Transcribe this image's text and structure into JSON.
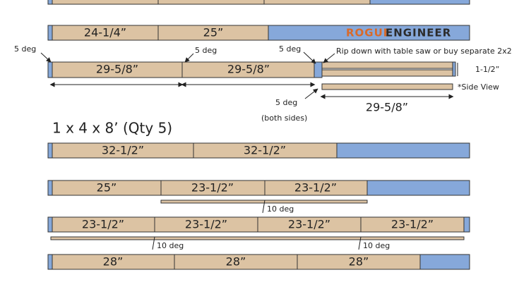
{
  "logo": {
    "rogue": "ROGUE",
    "engineer": "ENGINEER"
  },
  "section_2x4": {
    "row1": {
      "cuts": [
        "24-1/4”",
        "25”"
      ]
    },
    "row2": {
      "cuts": [
        "29-5/8”",
        "29-5/8”"
      ]
    },
    "notes": {
      "angle_left": "5 deg",
      "angle_mid": "5 deg",
      "angle_right": "5 deg",
      "rip": "Rip down with table saw or buy separate 2x2",
      "width": "1-1/2”",
      "side_view": "*Side View",
      "side_angle": "5 deg",
      "both_sides": "(both sides)",
      "side_length": "29-5/8”"
    }
  },
  "section_1x4": {
    "heading": "1 x 4 x 8’ (Qty 5)",
    "row1": {
      "cuts": [
        "32-1/2”",
        "32-1/2”"
      ]
    },
    "row2": {
      "cuts": [
        "25”",
        "23-1/2”",
        "23-1/2”"
      ],
      "angle": "10 deg"
    },
    "row3": {
      "cuts": [
        "23-1/2”",
        "23-1/2”",
        "23-1/2”",
        "23-1/2”"
      ],
      "angles": [
        "10 deg",
        "10 deg"
      ]
    },
    "row4": {
      "cuts": [
        "28”",
        "28”",
        "28”"
      ]
    }
  }
}
